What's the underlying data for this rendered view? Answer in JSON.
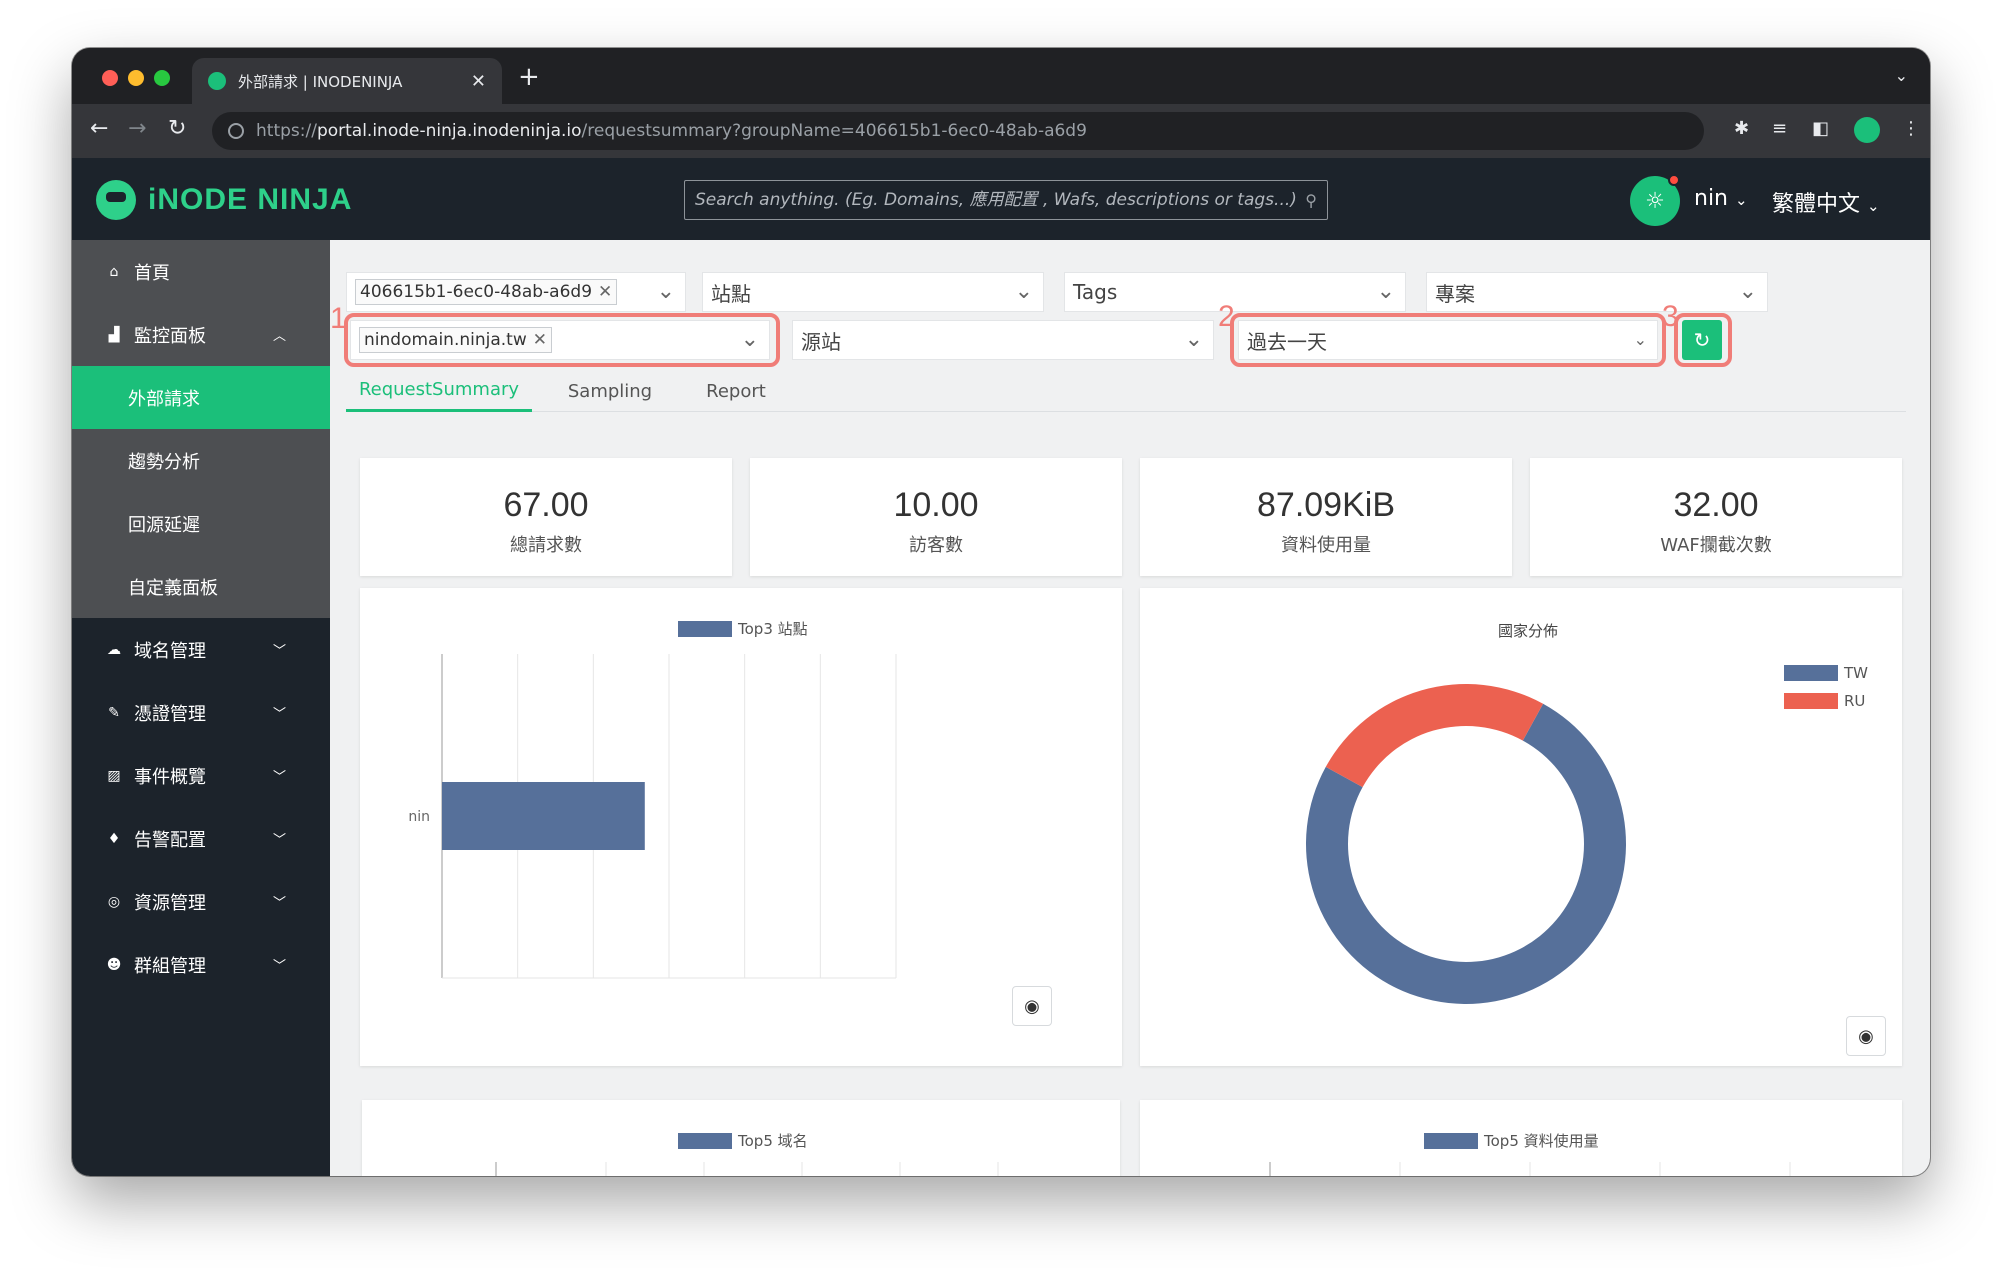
{
  "browser": {
    "tab_title": "外部請求 | INODENINJA",
    "url_protocol": "https://",
    "url_host": "portal.inode-ninja.inodeninja.io",
    "url_path": "/requestsummary?groupName=406615b1-6ec0-48ab-a6d9"
  },
  "header": {
    "logo_text": "iNODE NINJA",
    "search_placeholder": "Search anything. (Eg. Domains, 應用配置 , Wafs, descriptions or tags...)",
    "user": "nin",
    "language": "繁體中文"
  },
  "sidebar": {
    "items": [
      {
        "label": "首頁",
        "icon": "home-icon"
      },
      {
        "label": "監控面板",
        "icon": "chart-icon",
        "subitems": [
          "外部請求",
          "趨勢分析",
          "回源延遲",
          "自定義面板"
        ]
      },
      {
        "label": "域名管理",
        "icon": "cloud-icon"
      },
      {
        "label": "憑證管理",
        "icon": "certificate-icon"
      },
      {
        "label": "事件概覽",
        "icon": "event-icon"
      },
      {
        "label": "告警配置",
        "icon": "bell-icon"
      },
      {
        "label": "資源管理",
        "icon": "globe-icon"
      },
      {
        "label": "群組管理",
        "icon": "users-icon"
      }
    ]
  },
  "filters": {
    "group_chip": "406615b1-6ec0-48ab-a6d9",
    "site_placeholder": "站點",
    "tags_placeholder": "Tags",
    "project_placeholder": "專案",
    "domain_chip": "nindomain.ninja.tw",
    "origin_placeholder": "源站",
    "time_range": "過去一天"
  },
  "annotations": [
    "1",
    "2",
    "3"
  ],
  "tabs": [
    "RequestSummary",
    "Sampling",
    "Report"
  ],
  "stats": [
    {
      "value": "67.00",
      "label": "總請求數"
    },
    {
      "value": "10.00",
      "label": "訪客數"
    },
    {
      "value": "87.09KiB",
      "label": "資料使用量"
    },
    {
      "value": "32.00",
      "label": "WAF攔截次數"
    }
  ],
  "chart_data": [
    {
      "type": "bar",
      "legend": "Top3 站點",
      "categories": [
        "nin"
      ],
      "values": [
        67
      ],
      "orientation": "horizontal",
      "color": "#56709a",
      "xlim": [
        0,
        150
      ],
      "grid": true
    },
    {
      "type": "pie",
      "title": "國家分佈",
      "labels": [
        "TW",
        "RU"
      ],
      "values": [
        75,
        25
      ],
      "colors": [
        "#56709a",
        "#ec6150"
      ],
      "donut": true,
      "legend_position": "top-right"
    },
    {
      "type": "bar",
      "legend": "Top5 域名",
      "color": "#56709a"
    },
    {
      "type": "bar",
      "legend": "Top5 資料使用量",
      "color": "#56709a"
    }
  ]
}
